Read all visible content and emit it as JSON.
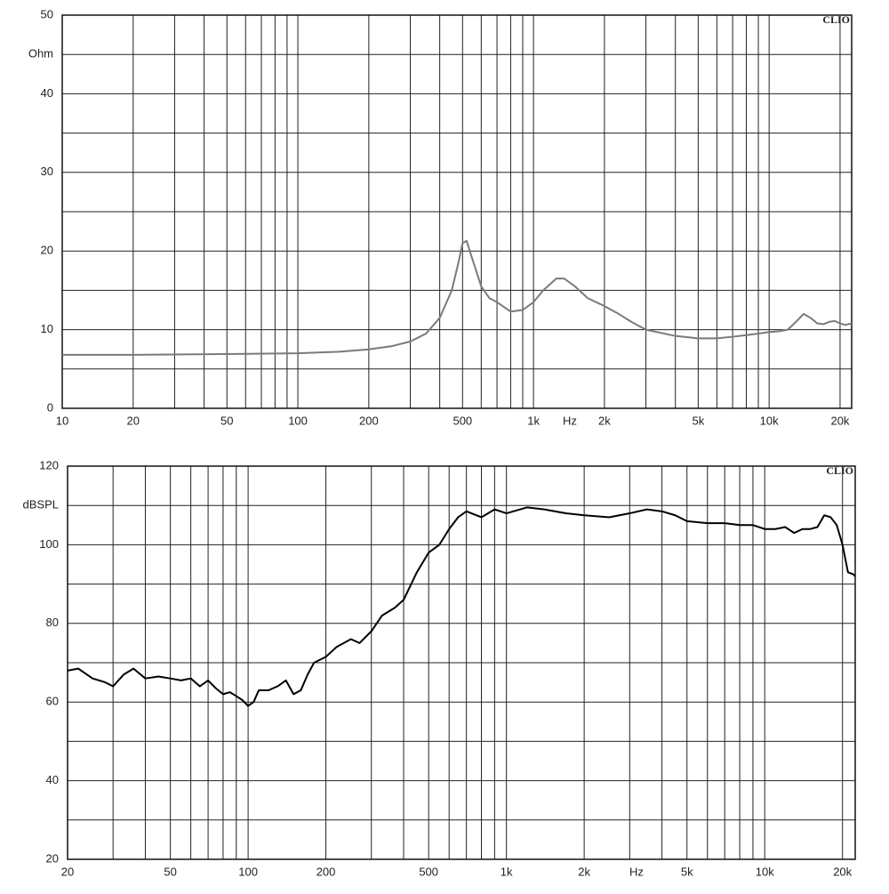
{
  "chart_data": [
    {
      "type": "line",
      "watermark": "CLIO",
      "y_label": "Ohm",
      "x_unit": "Hz",
      "log_x": true,
      "grid": true,
      "color": "#7a7a7a",
      "xlim": [
        10,
        22400
      ],
      "ylim": [
        0,
        50
      ],
      "xticks": [
        10,
        20,
        50,
        100,
        200,
        500,
        {
          "value": 1000,
          "label": "1k"
        },
        {
          "value": 2000,
          "label": "2k"
        },
        {
          "value": 5000,
          "label": "5k"
        },
        {
          "value": 10000,
          "label": "10k"
        },
        {
          "value": 20000,
          "label": "20k"
        }
      ],
      "yticks": [
        0,
        10,
        20,
        30,
        40,
        50
      ],
      "x": [
        10,
        20,
        50,
        100,
        150,
        200,
        250,
        300,
        350,
        400,
        450,
        480,
        500,
        520,
        550,
        600,
        650,
        700,
        800,
        900,
        1000,
        1100,
        1250,
        1350,
        1500,
        1700,
        2000,
        2300,
        2600,
        3000,
        4000,
        5000,
        6000,
        7000,
        8000,
        9000,
        10000,
        11000,
        12000,
        13000,
        14000,
        15000,
        16000,
        17000,
        18000,
        19000,
        20000,
        21000,
        22400
      ],
      "values": [
        6.8,
        6.8,
        6.9,
        7.0,
        7.2,
        7.5,
        7.9,
        8.5,
        9.5,
        11.5,
        15,
        18.5,
        21,
        21.3,
        19,
        15.5,
        14,
        13.5,
        12.3,
        12.5,
        13.5,
        15,
        16.5,
        16.5,
        15.5,
        14,
        13,
        12,
        11,
        10,
        9.2,
        8.9,
        8.9,
        9.1,
        9.3,
        9.5,
        9.7,
        9.8,
        10,
        11,
        12,
        11.5,
        10.8,
        10.7,
        11,
        11.1,
        10.8,
        10.6,
        10.8
      ]
    },
    {
      "type": "line",
      "watermark": "CLIO",
      "y_label": "dBSPL",
      "x_unit": "Hz",
      "log_x": true,
      "grid": true,
      "color": "#000000",
      "xlim": [
        20,
        22400
      ],
      "ylim": [
        20,
        120
      ],
      "xticks": [
        20,
        50,
        100,
        200,
        500,
        {
          "value": 1000,
          "label": "1k"
        },
        {
          "value": 2000,
          "label": "2k"
        },
        {
          "value": 5000,
          "label": "5k"
        },
        {
          "value": 10000,
          "label": "10k"
        },
        {
          "value": 20000,
          "label": "20k"
        }
      ],
      "yticks": [
        20,
        40,
        60,
        80,
        100,
        120
      ],
      "x": [
        20,
        22,
        25,
        28,
        30,
        33,
        36,
        40,
        45,
        50,
        55,
        60,
        65,
        70,
        75,
        80,
        85,
        90,
        95,
        100,
        105,
        110,
        120,
        130,
        140,
        150,
        160,
        170,
        180,
        200,
        220,
        250,
        270,
        300,
        330,
        370,
        400,
        450,
        500,
        550,
        600,
        650,
        700,
        800,
        900,
        1000,
        1200,
        1400,
        1700,
        2000,
        2500,
        3000,
        3500,
        4000,
        4500,
        5000,
        6000,
        7000,
        8000,
        9000,
        10000,
        11000,
        12000,
        13000,
        14000,
        15000,
        16000,
        17000,
        18000,
        19000,
        20000,
        21000,
        22000,
        22400
      ],
      "values": [
        68,
        68.5,
        66,
        65,
        64,
        67,
        68.5,
        66,
        66.5,
        66,
        65.5,
        66,
        64,
        65.5,
        63.5,
        62,
        62.5,
        61.5,
        60.5,
        59,
        60,
        63,
        63,
        64,
        65.5,
        62,
        63,
        67,
        70,
        71.5,
        74,
        76,
        75,
        78,
        82,
        84,
        86,
        93,
        98,
        100,
        104,
        107,
        108.5,
        107,
        109,
        108,
        109.5,
        109,
        108,
        107.5,
        107,
        108,
        109,
        108.5,
        107.5,
        106,
        105.5,
        105.5,
        105,
        105,
        104,
        104,
        104.5,
        103,
        104,
        104,
        104.5,
        107.5,
        107,
        105,
        100,
        93,
        92.5,
        92
      ]
    }
  ]
}
